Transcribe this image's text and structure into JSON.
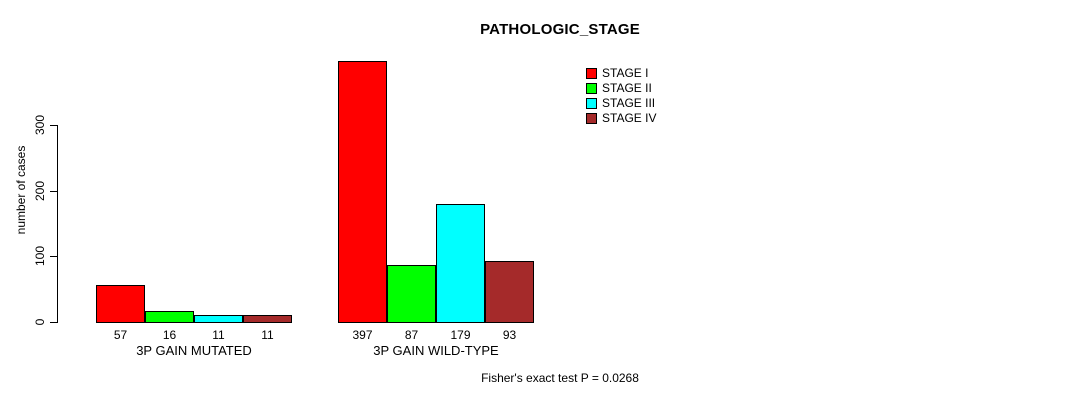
{
  "chart_data": {
    "type": "bar",
    "title": "PATHOLOGIC_STAGE",
    "xlabel": "",
    "ylabel": "number of cases",
    "ylim": [
      0,
      300
    ],
    "yticks": [
      0,
      100,
      200,
      300
    ],
    "grid": false,
    "legend_position": "top-right",
    "categories": [
      "3P GAIN MUTATED",
      "3P GAIN WILD-TYPE"
    ],
    "series": [
      {
        "name": "STAGE I",
        "color": "#ff0000",
        "values": [
          57,
          397
        ]
      },
      {
        "name": "STAGE II",
        "color": "#00ff00",
        "values": [
          16,
          87
        ]
      },
      {
        "name": "STAGE III",
        "color": "#00ffff",
        "values": [
          11,
          179
        ]
      },
      {
        "name": "STAGE IV",
        "color": "#a52a2a",
        "values": [
          11,
          93
        ]
      }
    ],
    "bar_value_labels": [
      [
        57,
        16,
        11,
        11
      ],
      [
        397,
        87,
        179,
        93
      ]
    ],
    "annotation": "Fisher's exact test P = 0.0268"
  }
}
